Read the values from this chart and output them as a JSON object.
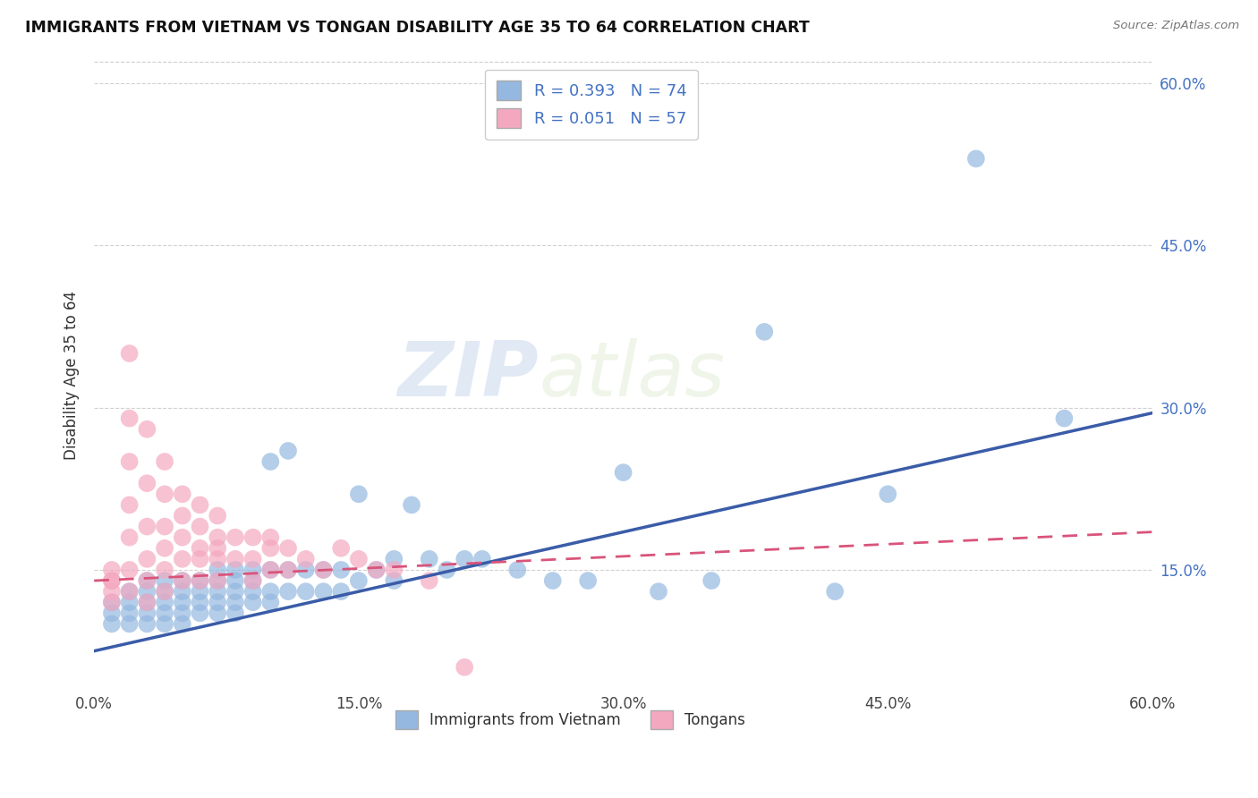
{
  "title": "IMMIGRANTS FROM VIETNAM VS TONGAN DISABILITY AGE 35 TO 64 CORRELATION CHART",
  "source": "Source: ZipAtlas.com",
  "ylabel": "Disability Age 35 to 64",
  "xmin": 0.0,
  "xmax": 0.6,
  "ymin": 0.04,
  "ymax": 0.62,
  "yticks": [
    0.15,
    0.3,
    0.45,
    0.6
  ],
  "ytick_labels": [
    "15.0%",
    "30.0%",
    "45.0%",
    "60.0%"
  ],
  "xticks": [
    0.0,
    0.15,
    0.3,
    0.45,
    0.6
  ],
  "xtick_labels": [
    "0.0%",
    "15.0%",
    "30.0%",
    "45.0%",
    "60.0%"
  ],
  "series1_color": "#94b8e0",
  "series2_color": "#f4a8c0",
  "trendline1_color": "#3a5ca8",
  "trendline2_color": "#d9547a",
  "R1": 0.393,
  "N1": 74,
  "R2": 0.051,
  "N2": 57,
  "legend_label1": "Immigrants from Vietnam",
  "legend_label2": "Tongans",
  "watermark_zip": "ZIP",
  "watermark_atlas": "atlas",
  "background_color": "#ffffff",
  "grid_color": "#cccccc",
  "vietnam_x": [
    0.01,
    0.01,
    0.01,
    0.02,
    0.02,
    0.02,
    0.02,
    0.03,
    0.03,
    0.03,
    0.03,
    0.03,
    0.04,
    0.04,
    0.04,
    0.04,
    0.04,
    0.05,
    0.05,
    0.05,
    0.05,
    0.05,
    0.06,
    0.06,
    0.06,
    0.06,
    0.07,
    0.07,
    0.07,
    0.07,
    0.07,
    0.08,
    0.08,
    0.08,
    0.08,
    0.08,
    0.09,
    0.09,
    0.09,
    0.09,
    0.1,
    0.1,
    0.1,
    0.1,
    0.11,
    0.11,
    0.11,
    0.12,
    0.12,
    0.13,
    0.13,
    0.14,
    0.14,
    0.15,
    0.15,
    0.16,
    0.17,
    0.17,
    0.18,
    0.19,
    0.2,
    0.21,
    0.22,
    0.24,
    0.26,
    0.28,
    0.3,
    0.32,
    0.35,
    0.38,
    0.42,
    0.45,
    0.5,
    0.55
  ],
  "vietnam_y": [
    0.12,
    0.11,
    0.1,
    0.13,
    0.12,
    0.11,
    0.1,
    0.14,
    0.13,
    0.12,
    0.11,
    0.1,
    0.14,
    0.13,
    0.12,
    0.11,
    0.1,
    0.14,
    0.13,
    0.12,
    0.11,
    0.1,
    0.14,
    0.13,
    0.12,
    0.11,
    0.15,
    0.14,
    0.13,
    0.12,
    0.11,
    0.15,
    0.14,
    0.13,
    0.12,
    0.11,
    0.15,
    0.14,
    0.13,
    0.12,
    0.25,
    0.15,
    0.13,
    0.12,
    0.26,
    0.15,
    0.13,
    0.15,
    0.13,
    0.15,
    0.13,
    0.15,
    0.13,
    0.22,
    0.14,
    0.15,
    0.16,
    0.14,
    0.21,
    0.16,
    0.15,
    0.16,
    0.16,
    0.15,
    0.14,
    0.14,
    0.24,
    0.13,
    0.14,
    0.37,
    0.13,
    0.22,
    0.53,
    0.29
  ],
  "tongan_x": [
    0.01,
    0.01,
    0.01,
    0.01,
    0.01,
    0.02,
    0.02,
    0.02,
    0.02,
    0.02,
    0.02,
    0.02,
    0.03,
    0.03,
    0.03,
    0.03,
    0.03,
    0.03,
    0.04,
    0.04,
    0.04,
    0.04,
    0.04,
    0.04,
    0.05,
    0.05,
    0.05,
    0.05,
    0.05,
    0.06,
    0.06,
    0.06,
    0.06,
    0.06,
    0.07,
    0.07,
    0.07,
    0.07,
    0.07,
    0.08,
    0.08,
    0.09,
    0.09,
    0.09,
    0.1,
    0.1,
    0.1,
    0.11,
    0.11,
    0.12,
    0.13,
    0.14,
    0.15,
    0.16,
    0.17,
    0.19,
    0.21
  ],
  "tongan_y": [
    0.15,
    0.14,
    0.14,
    0.13,
    0.12,
    0.35,
    0.29,
    0.25,
    0.21,
    0.18,
    0.15,
    0.13,
    0.28,
    0.23,
    0.19,
    0.16,
    0.14,
    0.12,
    0.25,
    0.22,
    0.19,
    0.17,
    0.15,
    0.13,
    0.22,
    0.2,
    0.18,
    0.16,
    0.14,
    0.21,
    0.19,
    0.17,
    0.16,
    0.14,
    0.2,
    0.18,
    0.17,
    0.16,
    0.14,
    0.18,
    0.16,
    0.18,
    0.16,
    0.14,
    0.18,
    0.17,
    0.15,
    0.17,
    0.15,
    0.16,
    0.15,
    0.17,
    0.16,
    0.15,
    0.15,
    0.14,
    0.06
  ]
}
